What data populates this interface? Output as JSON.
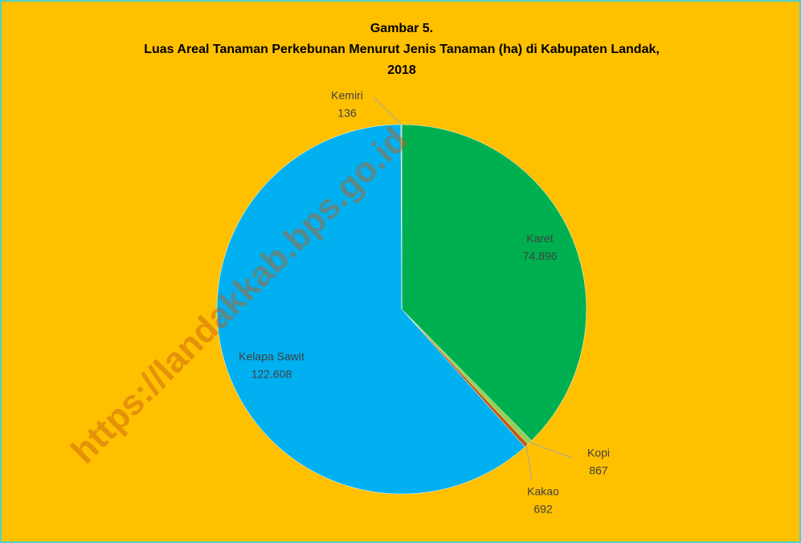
{
  "chart_data": {
    "type": "pie",
    "title": [
      "Gambar 5.",
      "Luas Areal Tanaman Perkebunan Menurut Jenis Tanaman (ha) di Kabupaten Landak,",
      "2018"
    ],
    "watermark": "https://landakkab.bps.go.id",
    "categories": [
      "Karet",
      "Kopi",
      "Kakao",
      "Kelapa Sawit",
      "Kemiri"
    ],
    "values": [
      74896,
      867,
      692,
      122608,
      136
    ],
    "value_labels": [
      "74.896",
      "867",
      "692",
      "122.608",
      "136"
    ],
    "colors": [
      "#00b050",
      "#92d050",
      "#c55a11",
      "#00b0f0",
      "#a5a5a5"
    ],
    "background": "#ffc000"
  }
}
